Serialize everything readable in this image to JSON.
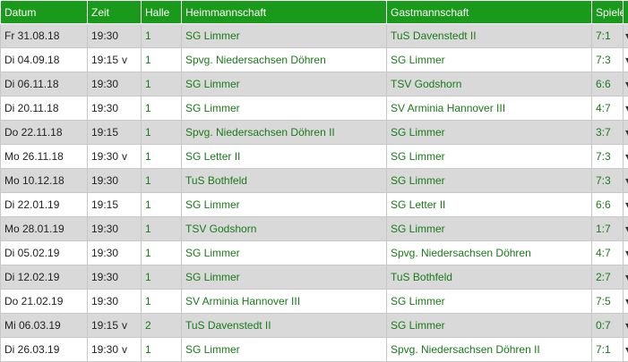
{
  "header": {
    "datum": "Datum",
    "zeit": "Zeit",
    "halle": "Halle",
    "heim": "Heimmannschaft",
    "gast": "Gastmannschaft",
    "spiele": "Spiele"
  },
  "rows": [
    {
      "datum": "Fr 31.08.18",
      "zeit": "19:30",
      "flag": "",
      "halle": "1",
      "heim": "SG Limmer",
      "gast": "TuS Davenstedt II",
      "spiele": "7:1"
    },
    {
      "datum": "Di 04.09.18",
      "zeit": "19:15",
      "flag": "v",
      "halle": "1",
      "heim": "Spvg. Niedersachsen Döhren",
      "gast": "SG Limmer",
      "spiele": "7:3"
    },
    {
      "datum": "Di 06.11.18",
      "zeit": "19:30",
      "flag": "",
      "halle": "1",
      "heim": "SG Limmer",
      "gast": "TSV Godshorn",
      "spiele": "6:6"
    },
    {
      "datum": "Di 20.11.18",
      "zeit": "19:30",
      "flag": "",
      "halle": "1",
      "heim": "SG Limmer",
      "gast": "SV Arminia Hannover III",
      "spiele": "4:7"
    },
    {
      "datum": "Do 22.11.18",
      "zeit": "19:15",
      "flag": "",
      "halle": "1",
      "heim": "Spvg. Niedersachsen Döhren II",
      "gast": "SG Limmer",
      "spiele": "3:7"
    },
    {
      "datum": "Mo 26.11.18",
      "zeit": "19:30",
      "flag": "v",
      "halle": "1",
      "heim": "SG Letter II",
      "gast": "SG Limmer",
      "spiele": "7:3"
    },
    {
      "datum": "Mo 10.12.18",
      "zeit": "19:30",
      "flag": "",
      "halle": "1",
      "heim": "TuS Bothfeld",
      "gast": "SG Limmer",
      "spiele": "7:3"
    },
    {
      "datum": "Di 22.01.19",
      "zeit": "19:15",
      "flag": "",
      "halle": "1",
      "heim": "SG Limmer",
      "gast": "SG Letter II",
      "spiele": "6:6"
    },
    {
      "datum": "Mo 28.01.19",
      "zeit": "19:30",
      "flag": "",
      "halle": "1",
      "heim": "TSV Godshorn",
      "gast": "SG Limmer",
      "spiele": "1:7"
    },
    {
      "datum": "Di 05.02.19",
      "zeit": "19:30",
      "flag": "",
      "halle": "1",
      "heim": "SG Limmer",
      "gast": "Spvg. Niedersachsen Döhren",
      "spiele": "4:7"
    },
    {
      "datum": "Di 12.02.19",
      "zeit": "19:30",
      "flag": "",
      "halle": "1",
      "heim": "SG Limmer",
      "gast": "TuS Bothfeld",
      "spiele": "2:7"
    },
    {
      "datum": "Do 21.02.19",
      "zeit": "19:30",
      "flag": "",
      "halle": "1",
      "heim": "SV Arminia Hannover III",
      "gast": "SG Limmer",
      "spiele": "7:5"
    },
    {
      "datum": "Mi 06.03.19",
      "zeit": "19:15",
      "flag": "v",
      "halle": "2",
      "heim": "TuS Davenstedt II",
      "gast": "SG Limmer",
      "spiele": "0:7"
    },
    {
      "datum": "Di 26.03.19",
      "zeit": "19:30",
      "flag": "v",
      "halle": "1",
      "heim": "SG Limmer",
      "gast": "Spvg. Niedersachsen Döhren II",
      "spiele": "7:1"
    }
  ]
}
